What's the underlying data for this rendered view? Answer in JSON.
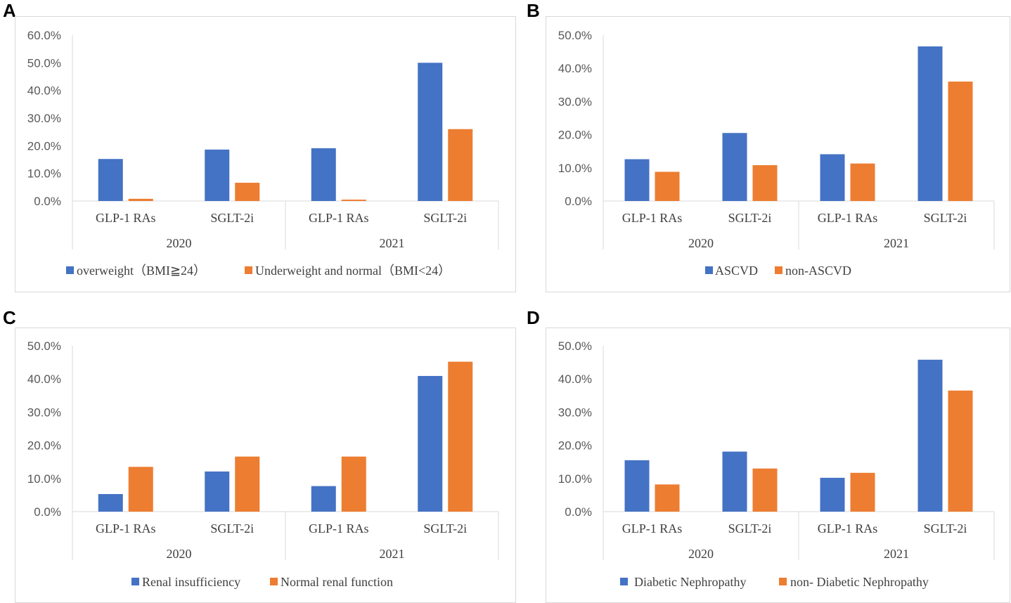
{
  "chart_data": [
    {
      "panel": "A",
      "type": "bar",
      "groups": [
        "2020",
        "2021"
      ],
      "categories": [
        "GLP-1 RAs",
        "SGLT-2i",
        "GLP-1 RAs",
        "SGLT-2i"
      ],
      "series": [
        {
          "name": "overweight（BMI≧24）",
          "color": "#4472C4",
          "values": [
            15.2,
            18.6,
            19.1,
            50.0
          ]
        },
        {
          "name": "Underweight and normal（BMI<24）",
          "color": "#ED7D31",
          "values": [
            0.8,
            6.6,
            0.5,
            26.0
          ]
        }
      ],
      "yticks": [
        "0.0%",
        "10.0%",
        "20.0%",
        "30.0%",
        "40.0%",
        "50.0%",
        "60.0%"
      ],
      "ylim": [
        0,
        60
      ]
    },
    {
      "panel": "B",
      "type": "bar",
      "groups": [
        "2020",
        "2021"
      ],
      "categories": [
        "GLP-1 RAs",
        "SGLT-2i",
        "GLP-1 RAs",
        "SGLT-2i"
      ],
      "series": [
        {
          "name": "ASCVD",
          "color": "#4472C4",
          "values": [
            12.6,
            20.5,
            14.1,
            46.6
          ]
        },
        {
          "name": "non-ASCVD",
          "color": "#ED7D31",
          "values": [
            8.8,
            10.8,
            11.3,
            36.0
          ]
        }
      ],
      "yticks": [
        "0.0%",
        "10.0%",
        "20.0%",
        "30.0%",
        "40.0%",
        "50.0%"
      ],
      "ylim": [
        0,
        50
      ]
    },
    {
      "panel": "C",
      "type": "bar",
      "groups": [
        "2020",
        "2021"
      ],
      "categories": [
        "GLP-1 RAs",
        "SGLT-2i",
        "GLP-1 RAs",
        "SGLT-2i"
      ],
      "series": [
        {
          "name": "Renal insufficiency",
          "color": "#4472C4",
          "values": [
            5.3,
            12.1,
            7.7,
            40.9
          ]
        },
        {
          "name": "Normal renal function",
          "color": "#ED7D31",
          "values": [
            13.5,
            16.6,
            16.6,
            45.2
          ]
        }
      ],
      "yticks": [
        "0.0%",
        "10.0%",
        "20.0%",
        "30.0%",
        "40.0%",
        "50.0%"
      ],
      "ylim": [
        0,
        50
      ]
    },
    {
      "panel": "D",
      "type": "bar",
      "groups": [
        "2020",
        "2021"
      ],
      "categories": [
        "GLP-1 RAs",
        "SGLT-2i",
        "GLP-1 RAs",
        "SGLT-2i"
      ],
      "series": [
        {
          "name": "Diabetic Nephropathy",
          "color": "#4472C4",
          "values": [
            15.5,
            18.1,
            10.2,
            45.8
          ]
        },
        {
          "name": "non- Diabetic Nephropathy",
          "color": "#ED7D31",
          "values": [
            8.2,
            13.0,
            11.7,
            36.5
          ]
        }
      ],
      "yticks": [
        "0.0%",
        "10.0%",
        "20.0%",
        "30.0%",
        "40.0%",
        "50.0%"
      ],
      "ylim": [
        0,
        50
      ]
    }
  ]
}
